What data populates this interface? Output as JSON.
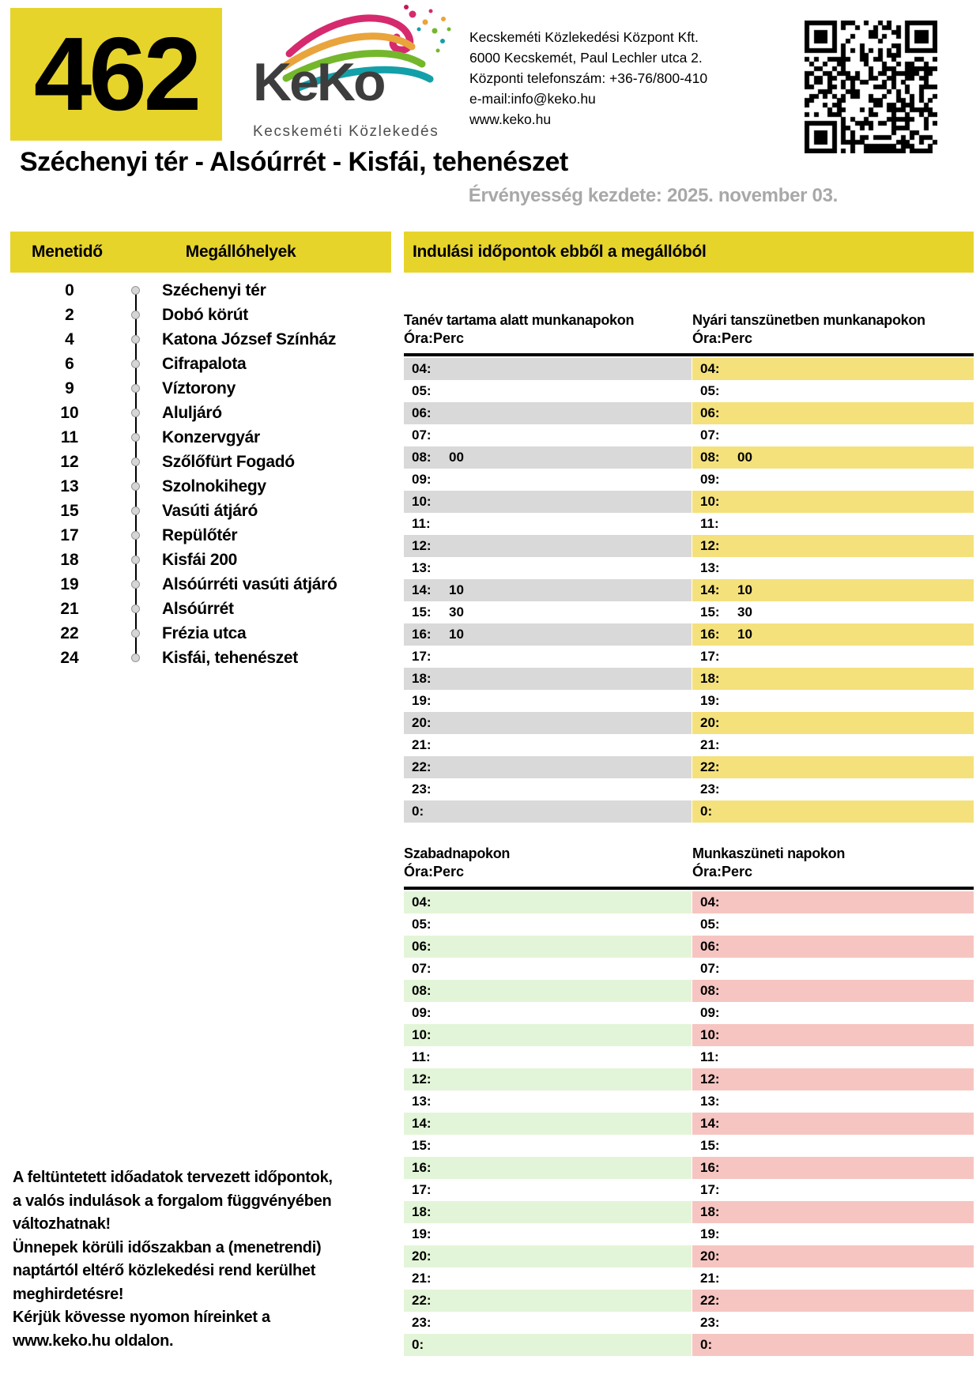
{
  "colors": {
    "accent_yellow": "#e7d42b",
    "stripe_gray": "#d9d9d9",
    "stripe_yellow": "#f4e17c",
    "stripe_green": "#e3f5d8",
    "stripe_pink": "#f6c5c1",
    "validity_gray": "#a8a8a8"
  },
  "badge": {
    "route_number": "462"
  },
  "logo": {
    "name": "KeKo",
    "subtitle": "Kecskeméti Közlekedés"
  },
  "company": {
    "lines": [
      "Kecskeméti Közlekedési Központ Kft.",
      "6000 Kecskemét, Paul Lechler utca 2.",
      "Központi telefonszám: +36-76/800-410",
      "e-mail:info@keko.hu",
      "www.keko.hu"
    ]
  },
  "title": "Széchenyi tér - Alsóúrrét - Kisfái, tehenészet",
  "validity": "Érvényesség kezdete: 2025. november 03.",
  "stops_panel": {
    "col_time": "Menetidő",
    "col_stops": "Megállóhelyek",
    "stops": [
      {
        "min": "0",
        "name": "Széchenyi tér"
      },
      {
        "min": "2",
        "name": "Dobó körút"
      },
      {
        "min": "4",
        "name": "Katona József Színház"
      },
      {
        "min": "6",
        "name": "Cifrapalota"
      },
      {
        "min": "9",
        "name": "Víztorony"
      },
      {
        "min": "10",
        "name": "Aluljáró"
      },
      {
        "min": "11",
        "name": "Konzervgyár"
      },
      {
        "min": "12",
        "name": "Szőlőfürt Fogadó"
      },
      {
        "min": "13",
        "name": "Szolnokihegy"
      },
      {
        "min": "15",
        "name": "Vasúti átjáró"
      },
      {
        "min": "17",
        "name": "Repülőtér"
      },
      {
        "min": "18",
        "name": "Kisfái 200"
      },
      {
        "min": "19",
        "name": "Alsóúrréti vasúti átjáró"
      },
      {
        "min": "21",
        "name": "Alsóúrrét"
      },
      {
        "min": "22",
        "name": "Frézia utca"
      },
      {
        "min": "24",
        "name": "Kisfái, tehenészet"
      }
    ]
  },
  "departures_panel": {
    "header": "Indulási időpontok ebből a megállóból",
    "time_format_label": "Óra:Perc",
    "sections": [
      {
        "title": "Tanév tartama alatt munkanapokon",
        "stripe": "#d9d9d9",
        "rows": [
          {
            "h": "04:",
            "m": ""
          },
          {
            "h": "05:",
            "m": ""
          },
          {
            "h": "06:",
            "m": ""
          },
          {
            "h": "07:",
            "m": ""
          },
          {
            "h": "08:",
            "m": "00"
          },
          {
            "h": "09:",
            "m": ""
          },
          {
            "h": "10:",
            "m": ""
          },
          {
            "h": "11:",
            "m": ""
          },
          {
            "h": "12:",
            "m": ""
          },
          {
            "h": "13:",
            "m": ""
          },
          {
            "h": "14:",
            "m": "10"
          },
          {
            "h": "15:",
            "m": "30"
          },
          {
            "h": "16:",
            "m": "10"
          },
          {
            "h": "17:",
            "m": ""
          },
          {
            "h": "18:",
            "m": ""
          },
          {
            "h": "19:",
            "m": ""
          },
          {
            "h": "20:",
            "m": ""
          },
          {
            "h": "21:",
            "m": ""
          },
          {
            "h": "22:",
            "m": ""
          },
          {
            "h": "23:",
            "m": ""
          },
          {
            "h": "0:",
            "m": ""
          }
        ]
      },
      {
        "title": "Nyári tanszünetben munkanapokon",
        "stripe": "#f4e17c",
        "rows": [
          {
            "h": "04:",
            "m": ""
          },
          {
            "h": "05:",
            "m": ""
          },
          {
            "h": "06:",
            "m": ""
          },
          {
            "h": "07:",
            "m": ""
          },
          {
            "h": "08:",
            "m": "00"
          },
          {
            "h": "09:",
            "m": ""
          },
          {
            "h": "10:",
            "m": ""
          },
          {
            "h": "11:",
            "m": ""
          },
          {
            "h": "12:",
            "m": ""
          },
          {
            "h": "13:",
            "m": ""
          },
          {
            "h": "14:",
            "m": "10"
          },
          {
            "h": "15:",
            "m": "30"
          },
          {
            "h": "16:",
            "m": "10"
          },
          {
            "h": "17:",
            "m": ""
          },
          {
            "h": "18:",
            "m": ""
          },
          {
            "h": "19:",
            "m": ""
          },
          {
            "h": "20:",
            "m": ""
          },
          {
            "h": "21:",
            "m": ""
          },
          {
            "h": "22:",
            "m": ""
          },
          {
            "h": "23:",
            "m": ""
          },
          {
            "h": "0:",
            "m": ""
          }
        ]
      },
      {
        "title": "Szabadnapokon",
        "stripe": "#e3f5d8",
        "rows": [
          {
            "h": "04:",
            "m": ""
          },
          {
            "h": "05:",
            "m": ""
          },
          {
            "h": "06:",
            "m": ""
          },
          {
            "h": "07:",
            "m": ""
          },
          {
            "h": "08:",
            "m": ""
          },
          {
            "h": "09:",
            "m": ""
          },
          {
            "h": "10:",
            "m": ""
          },
          {
            "h": "11:",
            "m": ""
          },
          {
            "h": "12:",
            "m": ""
          },
          {
            "h": "13:",
            "m": ""
          },
          {
            "h": "14:",
            "m": ""
          },
          {
            "h": "15:",
            "m": ""
          },
          {
            "h": "16:",
            "m": ""
          },
          {
            "h": "17:",
            "m": ""
          },
          {
            "h": "18:",
            "m": ""
          },
          {
            "h": "19:",
            "m": ""
          },
          {
            "h": "20:",
            "m": ""
          },
          {
            "h": "21:",
            "m": ""
          },
          {
            "h": "22:",
            "m": ""
          },
          {
            "h": "23:",
            "m": ""
          },
          {
            "h": "0:",
            "m": ""
          }
        ]
      },
      {
        "title": "Munkaszüneti napokon",
        "stripe": "#f6c5c1",
        "rows": [
          {
            "h": "04:",
            "m": ""
          },
          {
            "h": "05:",
            "m": ""
          },
          {
            "h": "06:",
            "m": ""
          },
          {
            "h": "07:",
            "m": ""
          },
          {
            "h": "08:",
            "m": ""
          },
          {
            "h": "09:",
            "m": ""
          },
          {
            "h": "10:",
            "m": ""
          },
          {
            "h": "11:",
            "m": ""
          },
          {
            "h": "12:",
            "m": ""
          },
          {
            "h": "13:",
            "m": ""
          },
          {
            "h": "14:",
            "m": ""
          },
          {
            "h": "15:",
            "m": ""
          },
          {
            "h": "16:",
            "m": ""
          },
          {
            "h": "17:",
            "m": ""
          },
          {
            "h": "18:",
            "m": ""
          },
          {
            "h": "19:",
            "m": ""
          },
          {
            "h": "20:",
            "m": ""
          },
          {
            "h": "21:",
            "m": ""
          },
          {
            "h": "22:",
            "m": ""
          },
          {
            "h": "23:",
            "m": ""
          },
          {
            "h": "0:",
            "m": ""
          }
        ]
      }
    ]
  },
  "disclaimer": {
    "lines": [
      "A feltüntetett időadatok tervezett időpontok,",
      "a valós indulások a forgalom függvényében",
      "változhatnak!",
      "Ünnepek körüli időszakban a (menetrendi)",
      "naptártól eltérő közlekedési rend kerülhet",
      "meghirdetésre!",
      "Kérjük kövesse nyomon híreinket a",
      "www.keko.hu oldalon."
    ]
  }
}
